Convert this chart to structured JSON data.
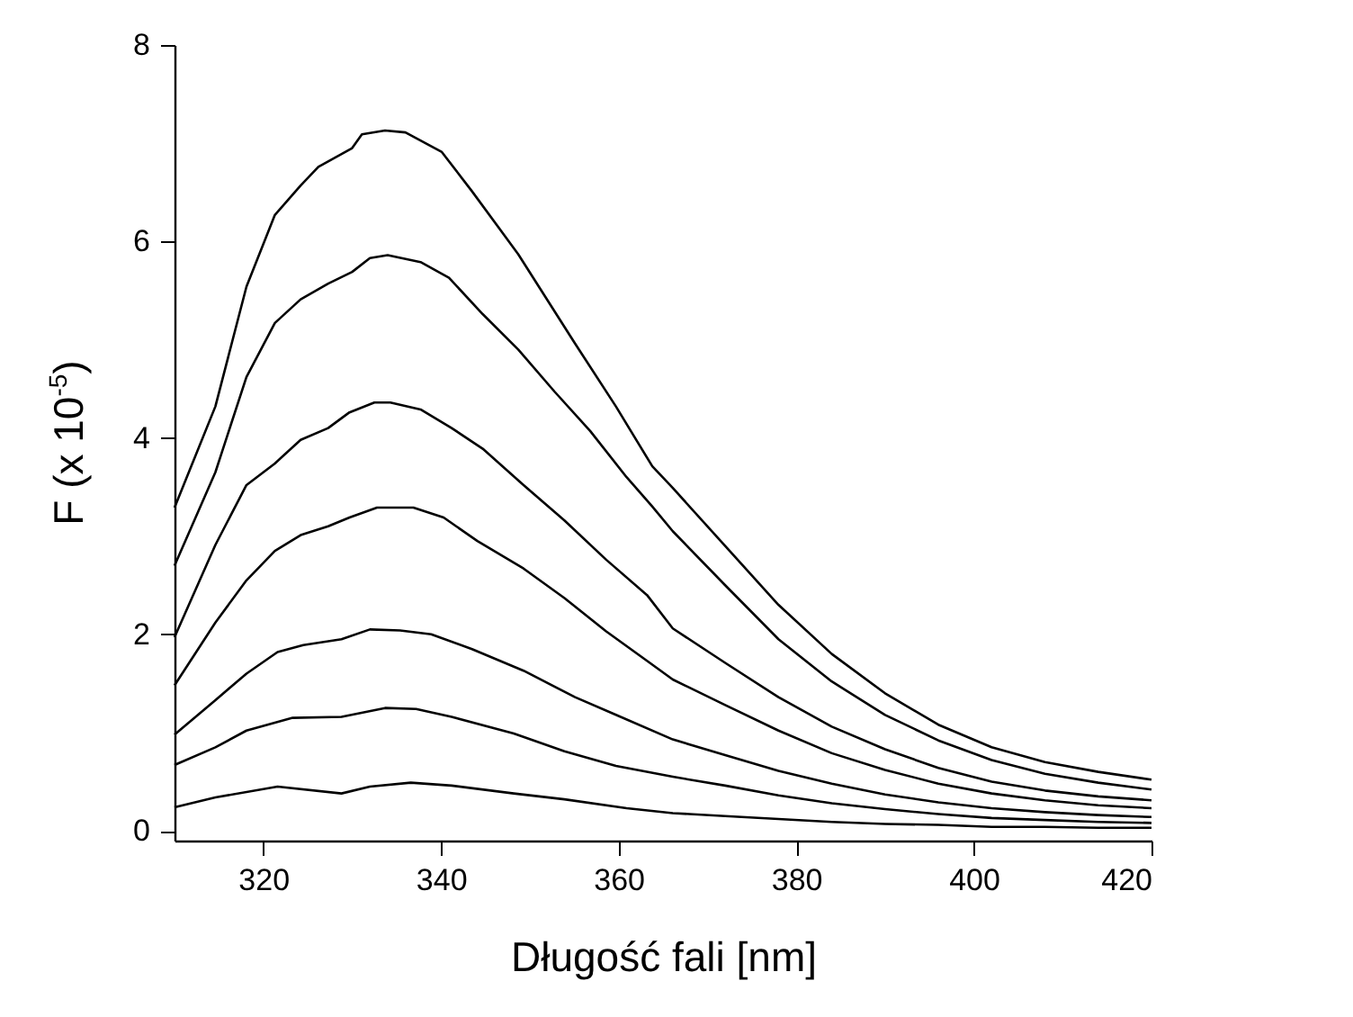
{
  "chart_data": {
    "type": "line",
    "xlabel": "Długość fali [nm]",
    "ylabel": "F (x 10$^{-5}$)",
    "xlim": [
      310,
      420
    ],
    "xticks": [
      320,
      340,
      360,
      380,
      400,
      420
    ],
    "ylim": [
      -0.1,
      8
    ],
    "yticks": [
      0,
      2,
      4,
      6,
      8
    ],
    "line_style": "solid",
    "series": [
      {
        "color": "#000000",
        "x": [
          310,
          314.6,
          318.1,
          321.3,
          324.2,
          326.2,
          330,
          331.1,
          333.7,
          336,
          340.1,
          343.5,
          348.7,
          355.1,
          359.7,
          363.8,
          366.1,
          372,
          378,
          384,
          390,
          396,
          402,
          408,
          414,
          420
        ],
        "values": [
          3.29,
          4.32,
          5.54,
          6.27,
          6.57,
          6.76,
          6.95,
          7.09,
          7.13,
          7.11,
          6.91,
          6.51,
          5.87,
          4.96,
          4.32,
          3.71,
          3.49,
          2.9,
          2.3,
          1.8,
          1.4,
          1.08,
          0.85,
          0.7,
          0.6,
          0.52
        ]
      },
      {
        "color": "#000000",
        "x": [
          310,
          314.6,
          318.1,
          321.3,
          324.2,
          327.3,
          330,
          332,
          334,
          337.7,
          340.9,
          344.7,
          348.7,
          352.8,
          356.8,
          360.9,
          363.8,
          366.1,
          372,
          378,
          384,
          390,
          396,
          402,
          408,
          414,
          420
        ],
        "values": [
          2.7,
          3.65,
          4.62,
          5.17,
          5.41,
          5.57,
          5.69,
          5.83,
          5.86,
          5.79,
          5.63,
          5.26,
          4.9,
          4.47,
          4.07,
          3.6,
          3.3,
          3.05,
          2.5,
          1.95,
          1.52,
          1.18,
          0.92,
          0.72,
          0.58,
          0.49,
          0.42
        ]
      },
      {
        "color": "#000000",
        "x": [
          310,
          314.6,
          318.1,
          321.3,
          324.2,
          327.3,
          329.7,
          332.5,
          334.3,
          337.7,
          341.2,
          344.7,
          349.3,
          353.9,
          358.6,
          363.2,
          366.1,
          372,
          378,
          384,
          390,
          396,
          402,
          408,
          414,
          420
        ],
        "values": [
          1.97,
          2.91,
          3.52,
          3.74,
          3.98,
          4.1,
          4.26,
          4.36,
          4.36,
          4.29,
          4.1,
          3.89,
          3.52,
          3.16,
          2.76,
          2.4,
          2.06,
          1.71,
          1.36,
          1.06,
          0.83,
          0.64,
          0.5,
          0.41,
          0.35,
          0.31
        ]
      },
      {
        "color": "#000000",
        "x": [
          310,
          314.6,
          318.1,
          321.3,
          324.2,
          327.3,
          329.7,
          332.8,
          336.9,
          340.3,
          344.1,
          349.3,
          353.9,
          358.6,
          363.2,
          366.1,
          372,
          378,
          384,
          390,
          396,
          402,
          408,
          414,
          420
        ],
        "values": [
          1.48,
          2.12,
          2.55,
          2.85,
          3.01,
          3.1,
          3.19,
          3.29,
          3.29,
          3.19,
          2.95,
          2.67,
          2.37,
          2.03,
          1.73,
          1.54,
          1.28,
          1.02,
          0.79,
          0.62,
          0.48,
          0.38,
          0.31,
          0.26,
          0.23
        ]
      },
      {
        "color": "#000000",
        "x": [
          310,
          314.6,
          318.1,
          321.6,
          324.5,
          328.8,
          332,
          335.4,
          338.9,
          343.5,
          349.3,
          355.1,
          359.7,
          366.1,
          372,
          378,
          384,
          390,
          396,
          402,
          408,
          414,
          420
        ],
        "values": [
          0.98,
          1.33,
          1.6,
          1.82,
          1.89,
          1.95,
          2.05,
          2.04,
          2.0,
          1.85,
          1.63,
          1.36,
          1.18,
          0.93,
          0.77,
          0.61,
          0.48,
          0.37,
          0.29,
          0.23,
          0.19,
          0.16,
          0.14
        ]
      },
      {
        "color": "#000000",
        "x": [
          310,
          314.6,
          318.1,
          323.3,
          328.8,
          333.7,
          337.2,
          341.2,
          348.2,
          353.9,
          359.7,
          366.1,
          372,
          378,
          384,
          390,
          396,
          402,
          408,
          414,
          420
        ],
        "values": [
          0.67,
          0.85,
          1.02,
          1.15,
          1.16,
          1.25,
          1.24,
          1.16,
          0.99,
          0.81,
          0.66,
          0.55,
          0.46,
          0.36,
          0.28,
          0.22,
          0.17,
          0.13,
          0.11,
          0.09,
          0.08
        ]
      },
      {
        "color": "#000000",
        "x": [
          310,
          314.6,
          321.6,
          328.8,
          332,
          336.6,
          341.2,
          348.2,
          353.9,
          360.9,
          366.1,
          372,
          378,
          384,
          390,
          396,
          402,
          408,
          414,
          420
        ],
        "values": [
          0.24,
          0.34,
          0.45,
          0.38,
          0.45,
          0.49,
          0.46,
          0.38,
          0.32,
          0.23,
          0.18,
          0.15,
          0.12,
          0.09,
          0.07,
          0.06,
          0.04,
          0.04,
          0.03,
          0.03
        ]
      }
    ]
  }
}
